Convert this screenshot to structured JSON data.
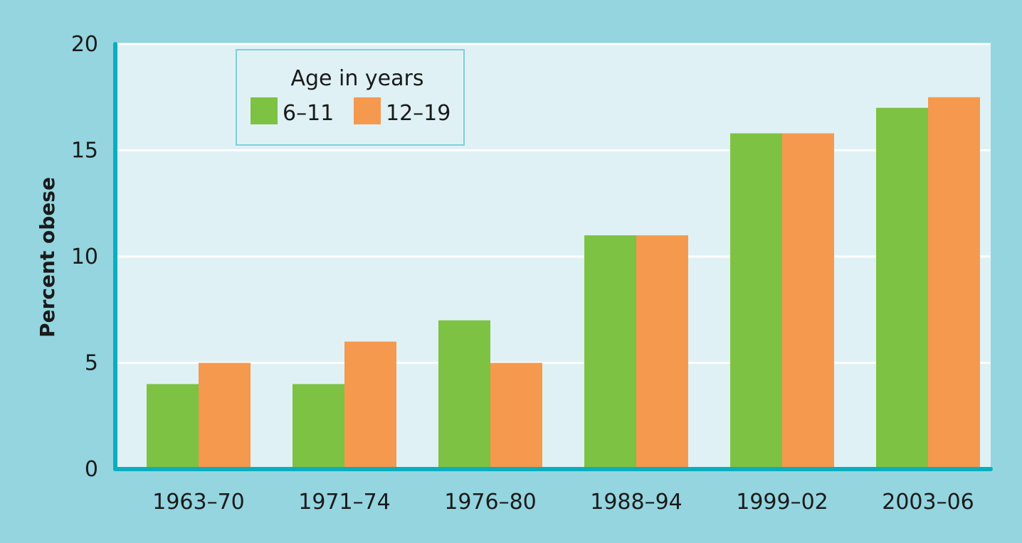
{
  "chart_data": {
    "type": "bar",
    "title": "",
    "xlabel": "",
    "ylabel": "Percent obese",
    "ylim": [
      0,
      20
    ],
    "yticks": [
      0,
      5,
      10,
      15,
      20
    ],
    "categories": [
      "1963–70",
      "1971–74",
      "1976–80",
      "1988–94",
      "1999–02",
      "2003–06"
    ],
    "series": [
      {
        "name": "6–11",
        "color": "#7dc242",
        "values": [
          4,
          4,
          7,
          11,
          15.8,
          17
        ]
      },
      {
        "name": "12–19",
        "color": "#f5994f",
        "values": [
          5,
          6,
          5,
          11,
          15.8,
          17.5
        ]
      }
    ],
    "legend": {
      "title": "Age in years",
      "position": "top-left"
    },
    "grid": true,
    "colors": {
      "background": "#94d5df",
      "plot_background": "#dff1f5",
      "axis": "#0aaebf",
      "grid": "#ffffff"
    }
  }
}
